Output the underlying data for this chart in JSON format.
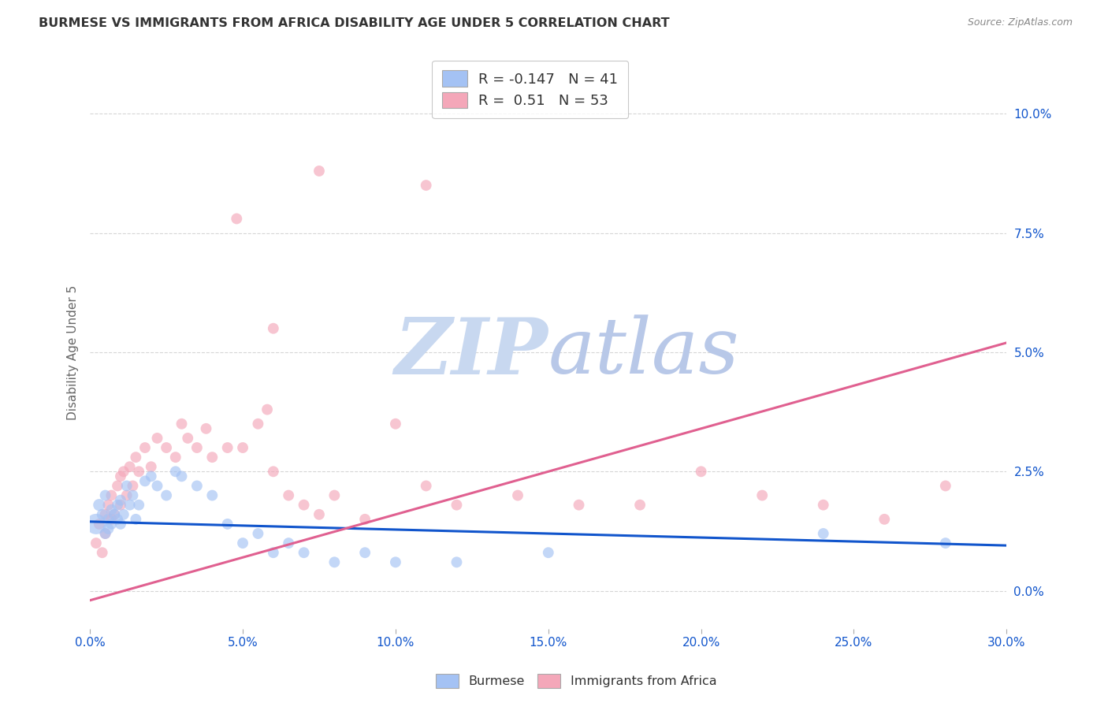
{
  "title": "BURMESE VS IMMIGRANTS FROM AFRICA DISABILITY AGE UNDER 5 CORRELATION CHART",
  "source": "Source: ZipAtlas.com",
  "ylabel": "Disability Age Under 5",
  "xlabel_ticks": [
    "0.0%",
    "5.0%",
    "10.0%",
    "15.0%",
    "20.0%",
    "25.0%",
    "30.0%"
  ],
  "xlabel_vals": [
    0.0,
    0.05,
    0.1,
    0.15,
    0.2,
    0.25,
    0.3
  ],
  "ylabel_ticks": [
    "0.0%",
    "2.5%",
    "5.0%",
    "7.5%",
    "10.0%"
  ],
  "ylabel_vals": [
    0.0,
    0.025,
    0.05,
    0.075,
    0.1
  ],
  "xlim": [
    0.0,
    0.3
  ],
  "ylim": [
    -0.008,
    0.108
  ],
  "blue_R": -0.147,
  "blue_N": 41,
  "pink_R": 0.51,
  "pink_N": 53,
  "blue_color": "#a4c2f4",
  "pink_color": "#f4a7b9",
  "blue_line_color": "#1155cc",
  "pink_line_color": "#e06090",
  "blue_scatter": [
    [
      0.002,
      0.014
    ],
    [
      0.003,
      0.018
    ],
    [
      0.004,
      0.016
    ],
    [
      0.005,
      0.02
    ],
    [
      0.005,
      0.012
    ],
    [
      0.006,
      0.015
    ],
    [
      0.006,
      0.013
    ],
    [
      0.007,
      0.017
    ],
    [
      0.007,
      0.014
    ],
    [
      0.008,
      0.016
    ],
    [
      0.009,
      0.018
    ],
    [
      0.009,
      0.015
    ],
    [
      0.01,
      0.014
    ],
    [
      0.01,
      0.019
    ],
    [
      0.011,
      0.016
    ],
    [
      0.012,
      0.022
    ],
    [
      0.013,
      0.018
    ],
    [
      0.014,
      0.02
    ],
    [
      0.015,
      0.015
    ],
    [
      0.016,
      0.018
    ],
    [
      0.018,
      0.023
    ],
    [
      0.02,
      0.024
    ],
    [
      0.022,
      0.022
    ],
    [
      0.025,
      0.02
    ],
    [
      0.028,
      0.025
    ],
    [
      0.03,
      0.024
    ],
    [
      0.035,
      0.022
    ],
    [
      0.04,
      0.02
    ],
    [
      0.045,
      0.014
    ],
    [
      0.05,
      0.01
    ],
    [
      0.055,
      0.012
    ],
    [
      0.06,
      0.008
    ],
    [
      0.065,
      0.01
    ],
    [
      0.07,
      0.008
    ],
    [
      0.08,
      0.006
    ],
    [
      0.09,
      0.008
    ],
    [
      0.1,
      0.006
    ],
    [
      0.12,
      0.006
    ],
    [
      0.15,
      0.008
    ],
    [
      0.24,
      0.012
    ],
    [
      0.28,
      0.01
    ]
  ],
  "blue_sizes": [
    350,
    120,
    100,
    100,
    100,
    100,
    100,
    100,
    100,
    100,
    100,
    100,
    100,
    100,
    100,
    100,
    100,
    100,
    100,
    100,
    100,
    100,
    100,
    100,
    100,
    100,
    100,
    100,
    100,
    100,
    100,
    100,
    100,
    100,
    100,
    100,
    100,
    100,
    100,
    100,
    100
  ],
  "pink_scatter": [
    [
      0.002,
      0.01
    ],
    [
      0.003,
      0.014
    ],
    [
      0.004,
      0.008
    ],
    [
      0.005,
      0.016
    ],
    [
      0.005,
      0.012
    ],
    [
      0.006,
      0.018
    ],
    [
      0.007,
      0.015
    ],
    [
      0.007,
      0.02
    ],
    [
      0.008,
      0.016
    ],
    [
      0.009,
      0.022
    ],
    [
      0.01,
      0.018
    ],
    [
      0.01,
      0.024
    ],
    [
      0.011,
      0.025
    ],
    [
      0.012,
      0.02
    ],
    [
      0.013,
      0.026
    ],
    [
      0.014,
      0.022
    ],
    [
      0.015,
      0.028
    ],
    [
      0.016,
      0.025
    ],
    [
      0.018,
      0.03
    ],
    [
      0.02,
      0.026
    ],
    [
      0.022,
      0.032
    ],
    [
      0.025,
      0.03
    ],
    [
      0.028,
      0.028
    ],
    [
      0.03,
      0.035
    ],
    [
      0.032,
      0.032
    ],
    [
      0.035,
      0.03
    ],
    [
      0.038,
      0.034
    ],
    [
      0.04,
      0.028
    ],
    [
      0.045,
      0.03
    ],
    [
      0.05,
      0.03
    ],
    [
      0.055,
      0.035
    ],
    [
      0.058,
      0.038
    ],
    [
      0.06,
      0.025
    ],
    [
      0.065,
      0.02
    ],
    [
      0.07,
      0.018
    ],
    [
      0.075,
      0.016
    ],
    [
      0.08,
      0.02
    ],
    [
      0.09,
      0.015
    ],
    [
      0.1,
      0.035
    ],
    [
      0.11,
      0.022
    ],
    [
      0.12,
      0.018
    ],
    [
      0.14,
      0.02
    ],
    [
      0.16,
      0.018
    ],
    [
      0.2,
      0.025
    ],
    [
      0.22,
      0.02
    ],
    [
      0.24,
      0.018
    ],
    [
      0.26,
      0.015
    ],
    [
      0.075,
      0.088
    ],
    [
      0.11,
      0.085
    ],
    [
      0.048,
      0.078
    ],
    [
      0.06,
      0.055
    ],
    [
      0.28,
      0.022
    ],
    [
      0.18,
      0.018
    ]
  ],
  "pink_sizes": [
    100,
    100,
    100,
    100,
    100,
    100,
    100,
    100,
    100,
    100,
    100,
    100,
    100,
    100,
    100,
    100,
    100,
    100,
    100,
    100,
    100,
    100,
    100,
    100,
    100,
    100,
    100,
    100,
    100,
    100,
    100,
    100,
    100,
    100,
    100,
    100,
    100,
    100,
    100,
    100,
    100,
    100,
    100,
    100,
    100,
    100,
    100,
    100,
    100,
    100,
    100,
    100,
    100
  ],
  "blue_trend": [
    0.0,
    0.3,
    0.0145,
    0.0095
  ],
  "pink_trend": [
    0.0,
    0.3,
    -0.002,
    0.052
  ],
  "background_color": "#ffffff",
  "grid_color": "#cccccc",
  "watermark_color": "#ccd9f0"
}
